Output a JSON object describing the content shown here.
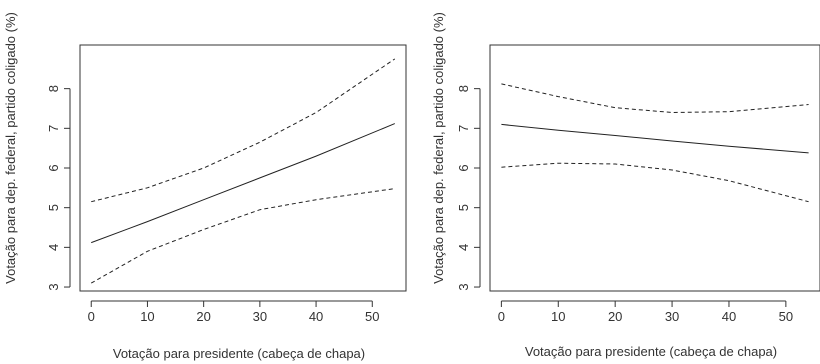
{
  "chart_data": [
    {
      "type": "line",
      "xlabel": "Votação para presidente (cabeça de chapa)",
      "ylabel": "Votação para dep. federal, partido coligado (%)",
      "xlim": [
        -2,
        56
      ],
      "ylim": [
        2.9,
        9.1
      ],
      "xticks": [
        "0",
        "10",
        "20",
        "30",
        "40",
        "50"
      ],
      "yticks": [
        "3",
        "4",
        "5",
        "6",
        "7",
        "8"
      ],
      "grid": false,
      "series": [
        {
          "style": "solid",
          "x": [
            0,
            10,
            20,
            30,
            40,
            54
          ],
          "y": [
            4.12,
            4.65,
            5.2,
            5.75,
            6.3,
            7.12
          ]
        },
        {
          "style": "dashed",
          "x": [
            0,
            10,
            20,
            30,
            40,
            54
          ],
          "y": [
            5.15,
            5.5,
            6.0,
            6.65,
            7.4,
            8.75
          ]
        },
        {
          "style": "dashed",
          "x": [
            0,
            10,
            20,
            30,
            40,
            54
          ],
          "y": [
            3.1,
            3.9,
            4.45,
            4.95,
            5.2,
            5.48
          ]
        }
      ]
    },
    {
      "type": "line",
      "xlabel": "Votação para presidente (cabeça de chapa)",
      "ylabel": "Votação para dep. federal, partido coligado (%)",
      "xlim": [
        -2,
        56
      ],
      "ylim": [
        2.9,
        9.1
      ],
      "xticks": [
        "0",
        "10",
        "20",
        "30",
        "40",
        "50"
      ],
      "yticks": [
        "3",
        "4",
        "5",
        "6",
        "7",
        "8"
      ],
      "grid": false,
      "series": [
        {
          "style": "solid",
          "x": [
            0,
            10,
            20,
            30,
            40,
            54
          ],
          "y": [
            7.1,
            6.95,
            6.82,
            6.68,
            6.55,
            6.38
          ]
        },
        {
          "style": "dashed",
          "x": [
            0,
            10,
            20,
            30,
            40,
            54
          ],
          "y": [
            8.12,
            7.8,
            7.52,
            7.4,
            7.42,
            7.6
          ]
        },
        {
          "style": "dashed",
          "x": [
            0,
            10,
            20,
            30,
            40,
            54
          ],
          "y": [
            6.02,
            6.12,
            6.1,
            5.95,
            5.68,
            5.15
          ]
        }
      ]
    }
  ]
}
